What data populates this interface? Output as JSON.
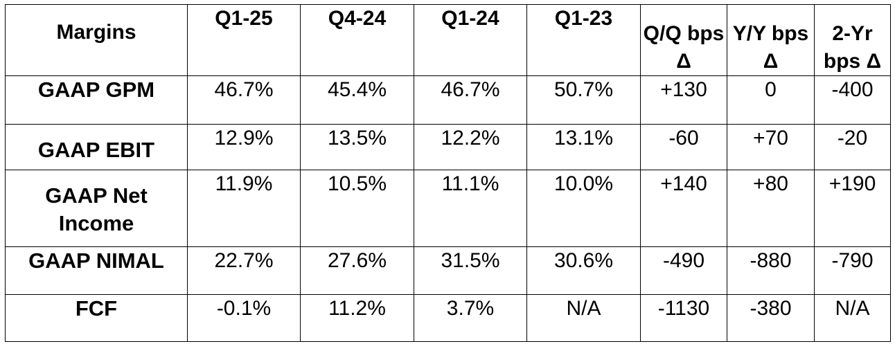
{
  "table": {
    "columns": [
      "Margins",
      "Q1-25",
      "Q4-24",
      "Q1-24",
      "Q1-23",
      "Q/Q bps Δ",
      "Y/Y bps Δ",
      "2-Yr bps Δ"
    ],
    "rows": [
      {
        "label": "GAAP GPM",
        "values": [
          "46.7%",
          "45.4%",
          "46.7%",
          "50.7%",
          "+130",
          "0",
          "-400"
        ]
      },
      {
        "label": "GAAP EBIT",
        "values": [
          "12.9%",
          "13.5%",
          "12.2%",
          "13.1%",
          "-60",
          "+70",
          "-20"
        ]
      },
      {
        "label": "GAAP Net Income",
        "values": [
          "11.9%",
          "10.5%",
          "11.1%",
          "10.0%",
          "+140",
          "+80",
          "+190"
        ]
      },
      {
        "label": "GAAP NIMAL",
        "values": [
          "22.7%",
          "27.6%",
          "31.5%",
          "30.6%",
          "-490",
          "-880",
          "-790"
        ]
      },
      {
        "label": "FCF",
        "values": [
          "-0.1%",
          "11.2%",
          "3.7%",
          "N/A",
          "-1130",
          "-380",
          "N/A"
        ]
      }
    ]
  }
}
